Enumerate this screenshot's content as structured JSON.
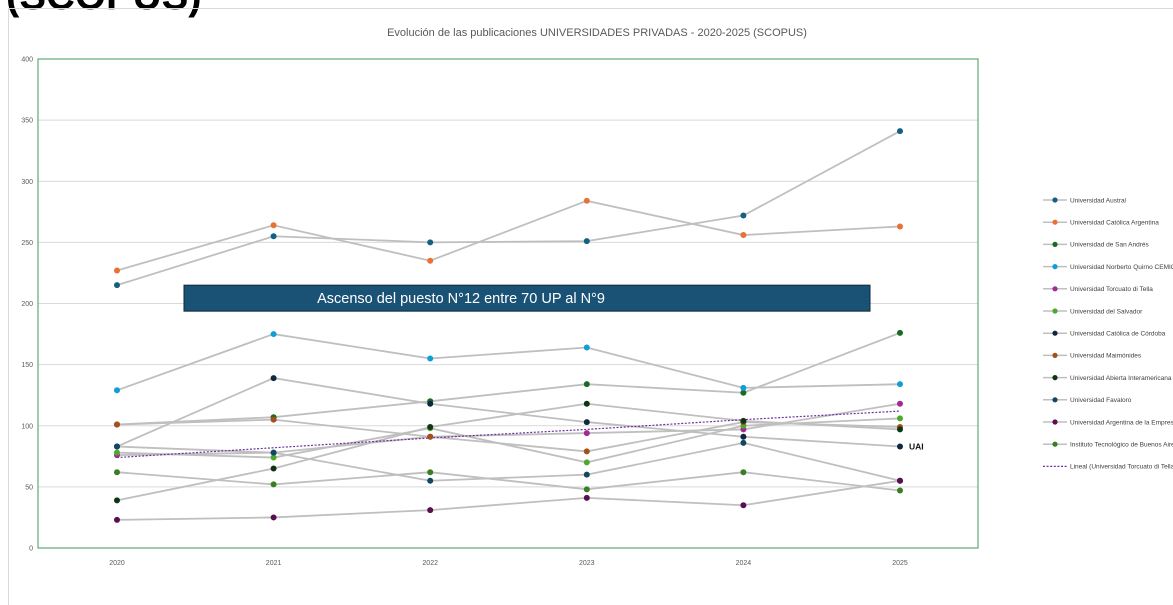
{
  "header": {
    "cut_text": "(SCOPUS)"
  },
  "chart_data": {
    "type": "line",
    "title": "Evolución de las publicaciones UNIVERSIDADES PRIVADAS - 2020-2025 (SCOPUS)",
    "xlabel": "",
    "ylabel": "",
    "x": [
      "2020",
      "2021",
      "2022",
      "2023",
      "2024",
      "2025"
    ],
    "ylim": [
      0,
      400
    ],
    "yticks": [
      0,
      50,
      100,
      150,
      200,
      250,
      300,
      350,
      400
    ],
    "grid": true,
    "legend_position": "right",
    "line_color": "#bfbfbf",
    "series": [
      {
        "name": "Universidad Austral",
        "marker_color": "#156082",
        "values": [
          215,
          255,
          250,
          251,
          272,
          341
        ]
      },
      {
        "name": "Universidad Católica Argentina",
        "marker_color": "#e97132",
        "values": [
          227,
          264,
          235,
          284,
          256,
          263
        ]
      },
      {
        "name": "Universidad de San Andrés",
        "marker_color": "#196b24",
        "values": [
          101,
          107,
          120,
          134,
          127,
          176
        ]
      },
      {
        "name": "Universidad Norberto Quirno CEMIC",
        "marker_color": "#0f9ed5",
        "values": [
          129,
          175,
          155,
          164,
          131,
          134
        ]
      },
      {
        "name": "Universidad Torcuato di Tella",
        "marker_color": "#a02b93",
        "values": [
          76,
          78,
          91,
          94,
          97,
          118
        ]
      },
      {
        "name": "Universidad del Salvador",
        "marker_color": "#4ea72e",
        "values": [
          78,
          74,
          98,
          70,
          100,
          106
        ]
      },
      {
        "name": "Universidad Católica de Córdoba",
        "marker_color": "#0e2841",
        "values": [
          83,
          139,
          118,
          103,
          91,
          83
        ]
      },
      {
        "name": "Universidad Maimónides",
        "marker_color": "#a5501b",
        "values": [
          101,
          105,
          91,
          79,
          103,
          99
        ]
      },
      {
        "name": "Universidad Abierta Interamericana",
        "marker_color": "#0d3512",
        "values": [
          39,
          65,
          99,
          118,
          104,
          97
        ]
      },
      {
        "name": "Universidad Favaloro",
        "marker_color": "#104862",
        "values": [
          83,
          78,
          55,
          60,
          86,
          55
        ]
      },
      {
        "name": "Universidad Argentina de la Empresa",
        "marker_color": "#5a0e52",
        "values": [
          23,
          25,
          31,
          41,
          35,
          55
        ]
      },
      {
        "name": "Instituto Tecnológico de Buenos Aires",
        "marker_color": "#3a7d22",
        "values": [
          62,
          52,
          62,
          48,
          62,
          47
        ]
      }
    ],
    "trendline": {
      "name": "Lineal (Universidad Torcuato di Tella)",
      "color": "#7030a0",
      "values": [
        74,
        82,
        90,
        97,
        105,
        112
      ]
    },
    "banner": {
      "text": "Ascenso del puesto N°12 entre 70 UP al N°9",
      "color": "#1a5276"
    },
    "annotation": {
      "text": "UAI",
      "x": "2025",
      "y": 83
    }
  }
}
